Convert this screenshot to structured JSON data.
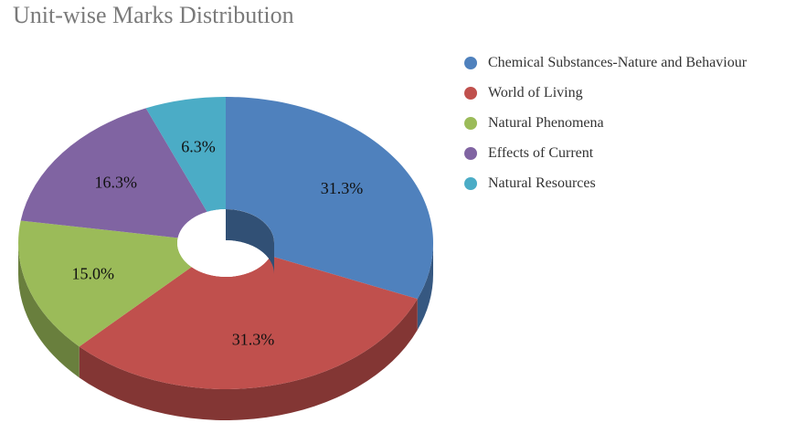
{
  "chart_data": {
    "type": "pie",
    "variant": "3d-donut",
    "title": "Unit-wise Marks Distribution",
    "legend_position": "right",
    "slices": [
      {
        "name": "Chemical Substances-Nature and Behaviour",
        "value": 31.3,
        "label": "31.3%",
        "color": "#4f81bd"
      },
      {
        "name": "World of Living",
        "value": 31.3,
        "label": "31.3%",
        "color": "#c0504d"
      },
      {
        "name": "Natural Phenomena",
        "value": 15.0,
        "label": "15.0%",
        "color": "#9bbb59"
      },
      {
        "name": "Effects of Current",
        "value": 16.3,
        "label": "16.3%",
        "color": "#8064a2"
      },
      {
        "name": "Natural Resources",
        "value": 6.3,
        "label": "6.3%",
        "color": "#4bacc6"
      }
    ]
  }
}
